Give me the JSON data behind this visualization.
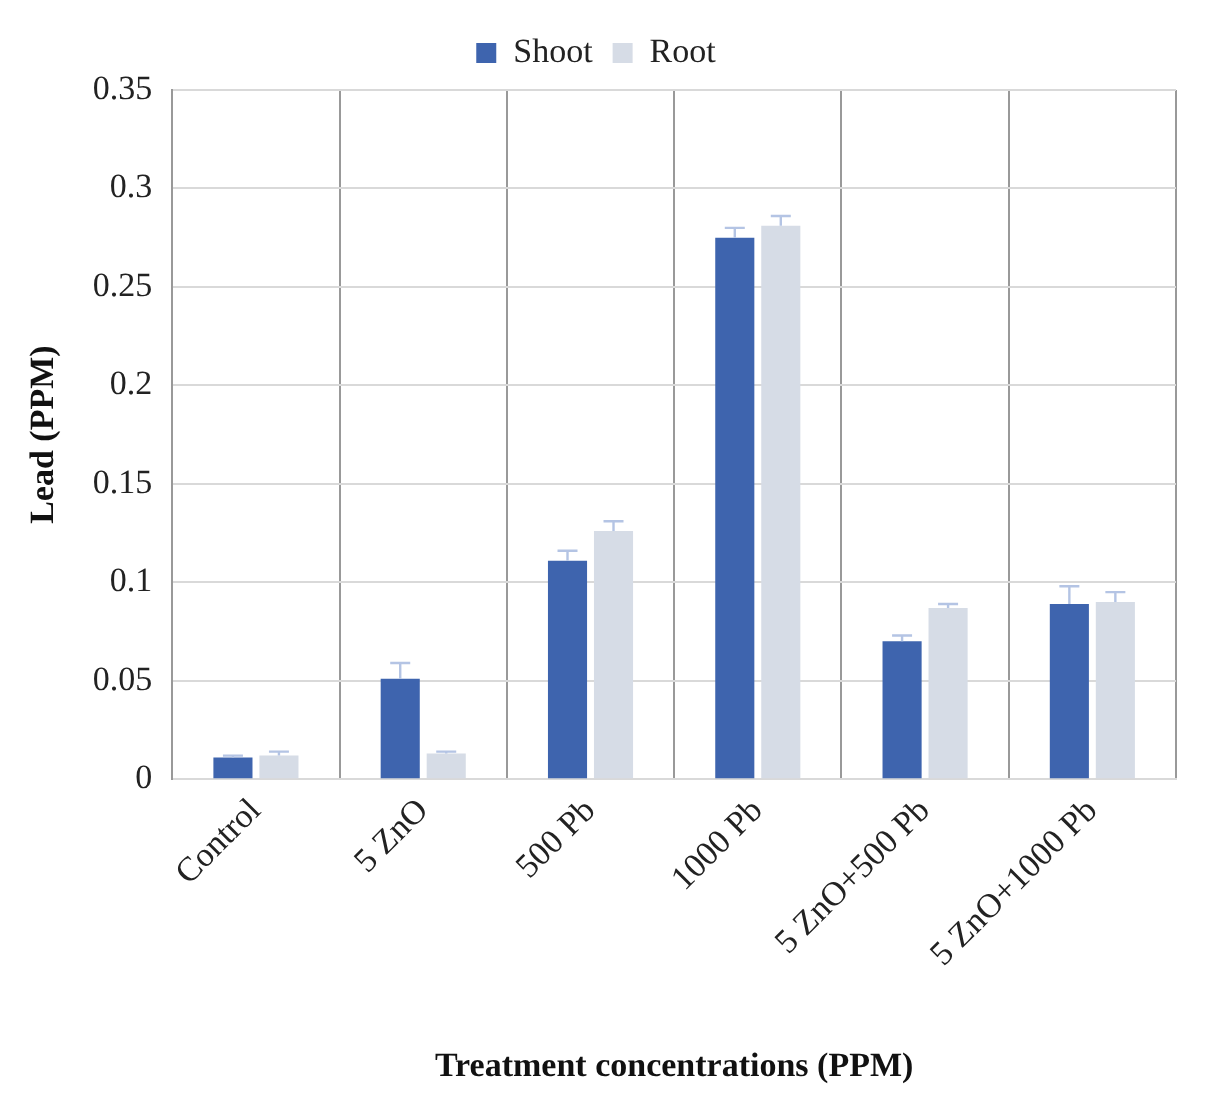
{
  "chart_data": {
    "type": "bar",
    "xlabel": "Treatment concentrations (PPM)",
    "ylabel": "Lead (PPM)",
    "categories": [
      "Control",
      "5 ZnO",
      "500 Pb",
      "1000 Pb",
      "5 ZnO+500 Pb",
      "5 ZnO+1000 Pb"
    ],
    "series": [
      {
        "name": "Shoot",
        "color": "#3e64ae",
        "values": [
          0.011,
          0.051,
          0.111,
          0.275,
          0.07,
          0.089
        ],
        "errors": [
          [
            0.011,
            0.012
          ],
          [
            0.051,
            0.059
          ],
          [
            0.111,
            0.116
          ],
          [
            0.275,
            0.28
          ],
          [
            0.07,
            0.073
          ],
          [
            0.089,
            0.098
          ]
        ]
      },
      {
        "name": "Root",
        "color": "#d6dce6",
        "values": [
          0.012,
          0.013,
          0.126,
          0.281,
          0.087,
          0.09
        ],
        "errors": [
          [
            0.012,
            0.014
          ],
          [
            0.013,
            0.014
          ],
          [
            0.126,
            0.131
          ],
          [
            0.281,
            0.286
          ],
          [
            0.087,
            0.089
          ],
          [
            0.09,
            0.095
          ]
        ]
      }
    ],
    "ylim": [
      0,
      0.35
    ],
    "yticks": [
      0,
      0.05,
      0.1,
      0.15,
      0.2,
      0.25,
      0.3,
      0.35
    ],
    "grid": true,
    "legend": "top"
  }
}
